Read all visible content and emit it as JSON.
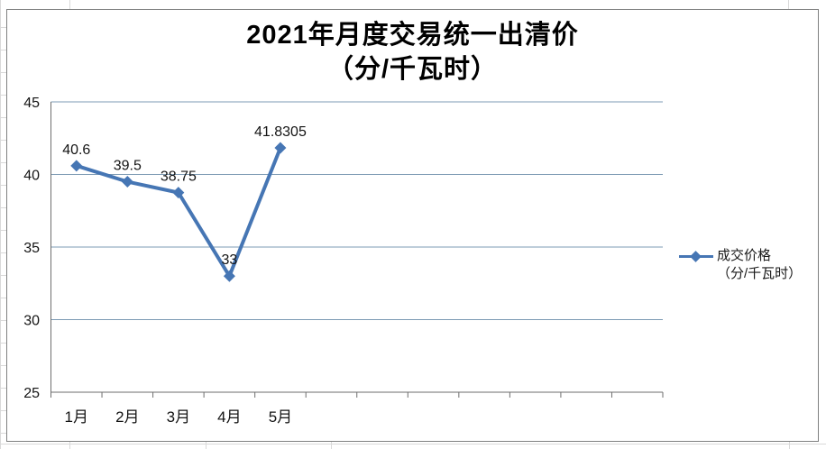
{
  "chart_data": {
    "type": "line",
    "title": "2021年月度交易统一出清价（分/千瓦时）",
    "title_line1": "2021年月度交易统一出清价",
    "title_line2": "（分/千瓦时）",
    "categories": [
      "1月",
      "2月",
      "3月",
      "4月",
      "5月"
    ],
    "series": [
      {
        "name": "成交价格（分/千瓦时）",
        "values": [
          40.6,
          39.5,
          38.75,
          33,
          41.8305
        ]
      }
    ],
    "point_labels": [
      "40.6",
      "39.5",
      "38.75",
      "33",
      "41.8305"
    ],
    "legend": {
      "line1": "成交价格",
      "line2": "（分/千瓦时）",
      "position": "right"
    },
    "xlabel": "",
    "ylabel": "",
    "ylim": [
      25,
      45
    ],
    "yticks": [
      25,
      30,
      35,
      40,
      45
    ],
    "category_slots": 12,
    "grid": true,
    "colors": {
      "series": "#4676B4",
      "gridline": "#7D9BB4",
      "axis": "#6E6E6E",
      "text": "#141414",
      "title": "#000000",
      "chart_border": "#7F8080",
      "sheet_gridline": "#D9D9D9"
    }
  }
}
